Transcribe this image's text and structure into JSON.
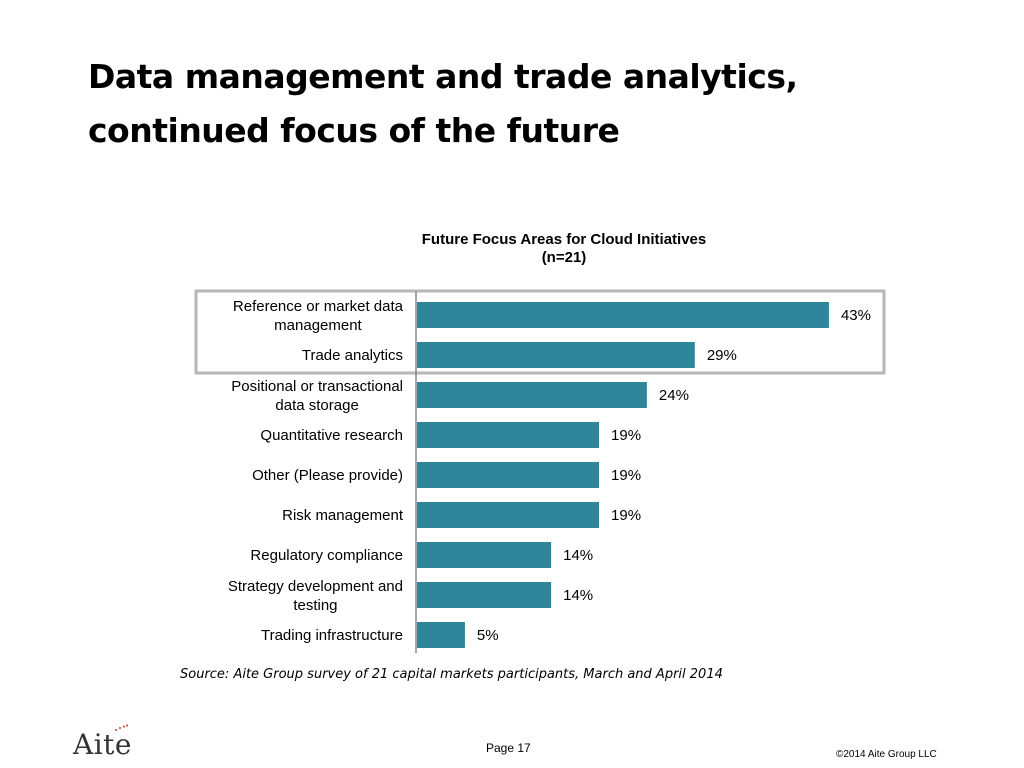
{
  "slide": {
    "title_line1": "Data management and trade analytics,",
    "title_line2": "continued focus of the future",
    "source": "Source: Aite Group survey of 21 capital markets participants, March and April 2014",
    "page": "Page 17",
    "copyright": "©2014 Aite Group LLC",
    "logo_text": "Aite"
  },
  "chart_data": {
    "type": "bar",
    "orientation": "horizontal",
    "title": "Future Focus Areas for Cloud Initiatives",
    "subtitle": "(n=21)",
    "categories": [
      [
        "Reference or market data",
        "management"
      ],
      [
        "Trade analytics"
      ],
      [
        "Positional or transactional",
        "data storage"
      ],
      [
        "Quantitative research"
      ],
      [
        "Other (Please provide)"
      ],
      [
        "Risk management"
      ],
      [
        "Regulatory compliance"
      ],
      [
        "Strategy development and",
        "testing"
      ],
      [
        "Trading infrastructure"
      ]
    ],
    "values": [
      43,
      29,
      24,
      19,
      19,
      19,
      14,
      14,
      5
    ],
    "value_labels": [
      "43%",
      "29%",
      "24%",
      "19%",
      "19%",
      "19%",
      "14%",
      "14%",
      "5%"
    ],
    "unit": "%",
    "xlim": [
      0,
      50
    ],
    "highlighted_categories": [
      0,
      1
    ],
    "colors": {
      "bar": "#2f869a",
      "highlight_border": "#b7b7b7",
      "axis": "#888888"
    },
    "legend": "none",
    "grid": false
  }
}
